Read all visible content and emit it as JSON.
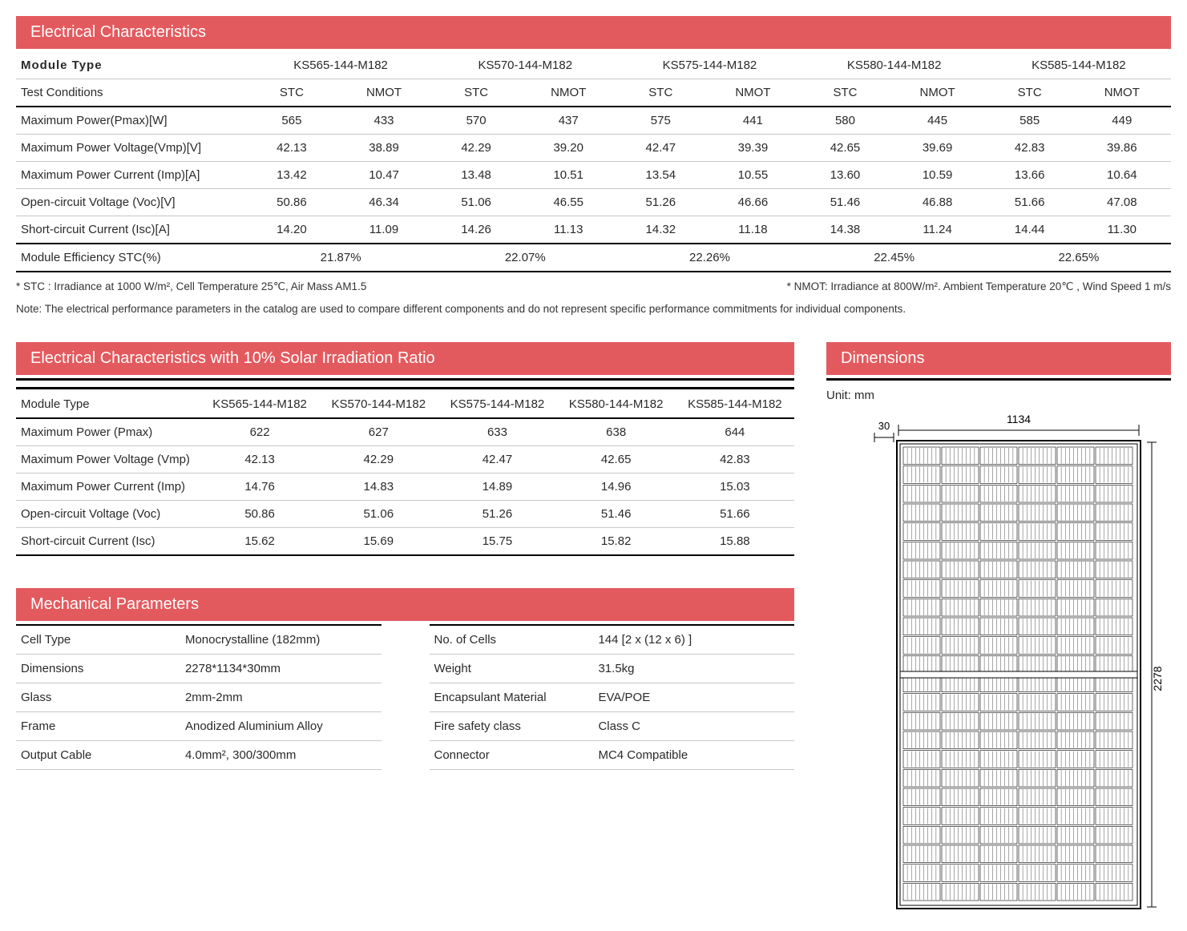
{
  "colors": {
    "accent": "#e35a5e",
    "text": "#2a2a2a",
    "border": "#c8c8c8"
  },
  "sec1": {
    "title": "Electrical Characteristics",
    "module_type_label": "Module Type",
    "model_names": [
      "KS565-144-M182",
      "KS570-144-M182",
      "KS575-144-M182",
      "KS580-144-M182",
      "KS585-144-M182"
    ],
    "test_cond_label": "Test Conditions",
    "subcols": [
      "STC",
      "NMOT"
    ],
    "rows": [
      {
        "label": "Maximum Power(Pmax)[W]",
        "vals": [
          [
            "565",
            "433"
          ],
          [
            "570",
            "437"
          ],
          [
            "575",
            "441"
          ],
          [
            "580",
            "445"
          ],
          [
            "585",
            "449"
          ]
        ]
      },
      {
        "label": "Maximum Power Voltage(Vmp)[V]",
        "vals": [
          [
            "42.13",
            "38.89"
          ],
          [
            "42.29",
            "39.20"
          ],
          [
            "42.47",
            "39.39"
          ],
          [
            "42.65",
            "39.69"
          ],
          [
            "42.83",
            "39.86"
          ]
        ]
      },
      {
        "label": "Maximum Power Current (Imp)[A]",
        "vals": [
          [
            "13.42",
            "10.47"
          ],
          [
            "13.48",
            "10.51"
          ],
          [
            "13.54",
            "10.55"
          ],
          [
            "13.60",
            "10.59"
          ],
          [
            "13.66",
            "10.64"
          ]
        ]
      },
      {
        "label": "Open-circuit Voltage (Voc)[V]",
        "vals": [
          [
            "50.86",
            "46.34"
          ],
          [
            "51.06",
            "46.55"
          ],
          [
            "51.26",
            "46.66"
          ],
          [
            "51.46",
            "46.88"
          ],
          [
            "51.66",
            "47.08"
          ]
        ]
      },
      {
        "label": "Short-circuit Current (Isc)[A]",
        "vals": [
          [
            "14.20",
            "11.09"
          ],
          [
            "14.26",
            "11.13"
          ],
          [
            "14.32",
            "11.18"
          ],
          [
            "14.38",
            "11.24"
          ],
          [
            "14.44",
            "11.30"
          ]
        ]
      }
    ],
    "eff_label": "Module Efficiency STC(%)",
    "eff_vals": [
      "21.87%",
      "22.07%",
      "22.26%",
      "22.45%",
      "22.65%"
    ],
    "footnote_stc": "* STC : Irradiance at 1000 W/m², Cell Temperature 25℃, Air Mass AM1.5",
    "footnote_nmot": "* NMOT: Irradiance at 800W/m². Ambient Temperature 20℃ , Wind Speed 1 m/s",
    "note": "Note: The electrical performance parameters in the catalog are used to compare different components and do not represent specific performance commitments for individual components."
  },
  "sec2": {
    "title": "Electrical Characteristics with 10% Solar Irradiation Ratio",
    "module_type_label": "Module Type",
    "model_names": [
      "KS565-144-M182",
      "KS570-144-M182",
      "KS575-144-M182",
      "KS580-144-M182",
      "KS585-144-M182"
    ],
    "rows": [
      {
        "label": "Maximum Power (Pmax)",
        "vals": [
          "622",
          "627",
          "633",
          "638",
          "644"
        ]
      },
      {
        "label": "Maximum Power Voltage (Vmp)",
        "vals": [
          "42.13",
          "42.29",
          "42.47",
          "42.65",
          "42.83"
        ]
      },
      {
        "label": "Maximum Power Current (Imp)",
        "vals": [
          "14.76",
          "14.83",
          "14.89",
          "14.96",
          "15.03"
        ]
      },
      {
        "label": "Open-circuit Voltage (Voc)",
        "vals": [
          "50.86",
          "51.06",
          "51.26",
          "51.46",
          "51.66"
        ]
      },
      {
        "label": "Short-circuit Current (Isc)",
        "vals": [
          "15.62",
          "15.69",
          "15.75",
          "15.82",
          "15.88"
        ]
      }
    ]
  },
  "sec3": {
    "title": "Mechanical Parameters",
    "left": [
      {
        "k": "Cell Type",
        "v": "Monocrystalline (182mm)"
      },
      {
        "k": "Dimensions",
        "v": "2278*1134*30mm"
      },
      {
        "k": "Glass",
        "v": "2mm-2mm"
      },
      {
        "k": "Frame",
        "v": "Anodized Aluminium Alloy"
      },
      {
        "k": "Output Cable",
        "v": "4.0mm², 300/300mm"
      }
    ],
    "right": [
      {
        "k": "No. of Cells",
        "v": "144 [2 x (12 x 6) ]"
      },
      {
        "k": "Weight",
        "v": "31.5kg"
      },
      {
        "k": "Encapsulant Material",
        "v": "EVA/POE"
      },
      {
        "k": "Fire safety class",
        "v": "Class C"
      },
      {
        "k": "Connector",
        "v": "MC4 Compatible"
      }
    ]
  },
  "dims": {
    "title": "Dimensions",
    "unit_label": "Unit:  mm",
    "width_label": "1134",
    "height_label": "2278",
    "depth_label": "30",
    "panel": {
      "cols": 6,
      "rows_per_half": 12,
      "halves": 2
    }
  }
}
